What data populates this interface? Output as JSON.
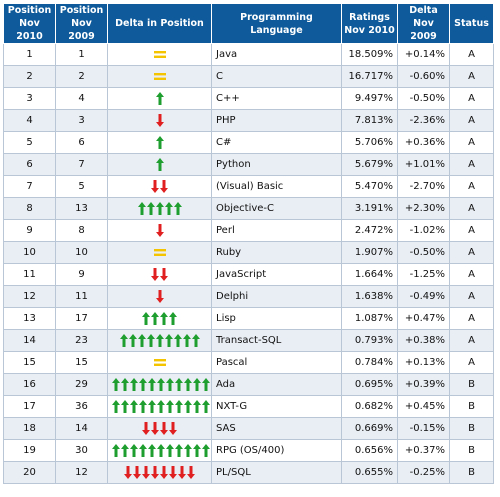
{
  "headers": {
    "pos2010": "Position\nNov 2010",
    "pos2009": "Position\nNov 2009",
    "delta_pos": "Delta in Position",
    "language": "Programming Language",
    "ratings": "Ratings\nNov 2010",
    "delta": "Delta\nNov 2009",
    "status": "Status"
  },
  "colors": {
    "header_bg": "#0e5a9a",
    "arrow_up": "#1e9e2e",
    "arrow_down": "#e02020",
    "equal": "#f5c400",
    "link": "#1f4fb0"
  },
  "rows": [
    {
      "pos2010": "1",
      "pos2009": "1",
      "change": 0,
      "language": "Java",
      "ratings": "18.509%",
      "delta": "+0.14%",
      "status": "A"
    },
    {
      "pos2010": "2",
      "pos2009": "2",
      "change": 0,
      "language": "C",
      "ratings": "16.717%",
      "delta": "-0.60%",
      "status": "A"
    },
    {
      "pos2010": "3",
      "pos2009": "4",
      "change": 1,
      "language": "C++",
      "ratings": "9.497%",
      "delta": "-0.50%",
      "status": "A"
    },
    {
      "pos2010": "4",
      "pos2009": "3",
      "change": -1,
      "language": "PHP",
      "ratings": "7.813%",
      "delta": "-2.36%",
      "status": "A"
    },
    {
      "pos2010": "5",
      "pos2009": "6",
      "change": 1,
      "language": "C#",
      "ratings": "5.706%",
      "delta": "+0.36%",
      "status": "A"
    },
    {
      "pos2010": "6",
      "pos2009": "7",
      "change": 1,
      "language": "Python",
      "ratings": "5.679%",
      "delta": "+1.01%",
      "status": "A"
    },
    {
      "pos2010": "7",
      "pos2009": "5",
      "change": -2,
      "language": "(Visual) Basic",
      "ratings": "5.470%",
      "delta": "-2.70%",
      "status": "A"
    },
    {
      "pos2010": "8",
      "pos2009": "13",
      "change": 5,
      "language": "Objective-C",
      "ratings": "3.191%",
      "delta": "+2.30%",
      "status": "A"
    },
    {
      "pos2010": "9",
      "pos2009": "8",
      "change": -1,
      "language": "Perl",
      "ratings": "2.472%",
      "delta": "-1.02%",
      "status": "A"
    },
    {
      "pos2010": "10",
      "pos2009": "10",
      "change": 0,
      "language": "Ruby",
      "ratings": "1.907%",
      "delta": "-0.50%",
      "status": "A"
    },
    {
      "pos2010": "11",
      "pos2009": "9",
      "change": -2,
      "language": "JavaScript",
      "ratings": "1.664%",
      "delta": "-1.25%",
      "status": "A"
    },
    {
      "pos2010": "12",
      "pos2009": "11",
      "change": -1,
      "language": "Delphi",
      "ratings": "1.638%",
      "delta": "-0.49%",
      "status": "A"
    },
    {
      "pos2010": "13",
      "pos2009": "17",
      "change": 4,
      "language": "Lisp",
      "ratings": "1.087%",
      "delta": "+0.47%",
      "status": "A"
    },
    {
      "pos2010": "14",
      "pos2009": "23",
      "change": 9,
      "language": "Transact-SQL",
      "ratings": "0.793%",
      "delta": "+0.38%",
      "status": "A"
    },
    {
      "pos2010": "15",
      "pos2009": "15",
      "change": 0,
      "language": "Pascal",
      "ratings": "0.784%",
      "delta": "+0.13%",
      "status": "A"
    },
    {
      "pos2010": "16",
      "pos2009": "29",
      "change": 13,
      "language": "Ada",
      "ratings": "0.695%",
      "delta": "+0.39%",
      "status": "B"
    },
    {
      "pos2010": "17",
      "pos2009": "36",
      "change": 19,
      "language": "NXT-G",
      "ratings": "0.682%",
      "delta": "+0.45%",
      "status": "B"
    },
    {
      "pos2010": "18",
      "pos2009": "14",
      "change": -4,
      "language": "SAS",
      "ratings": "0.669%",
      "delta": "-0.15%",
      "status": "B"
    },
    {
      "pos2010": "19",
      "pos2009": "30",
      "change": 11,
      "language": "RPG (OS/400)",
      "ratings": "0.656%",
      "delta": "+0.37%",
      "status": "B"
    },
    {
      "pos2010": "20",
      "pos2009": "12",
      "change": -8,
      "language": "PL/SQL",
      "ratings": "0.655%",
      "delta": "-0.25%",
      "status": "B"
    }
  ]
}
